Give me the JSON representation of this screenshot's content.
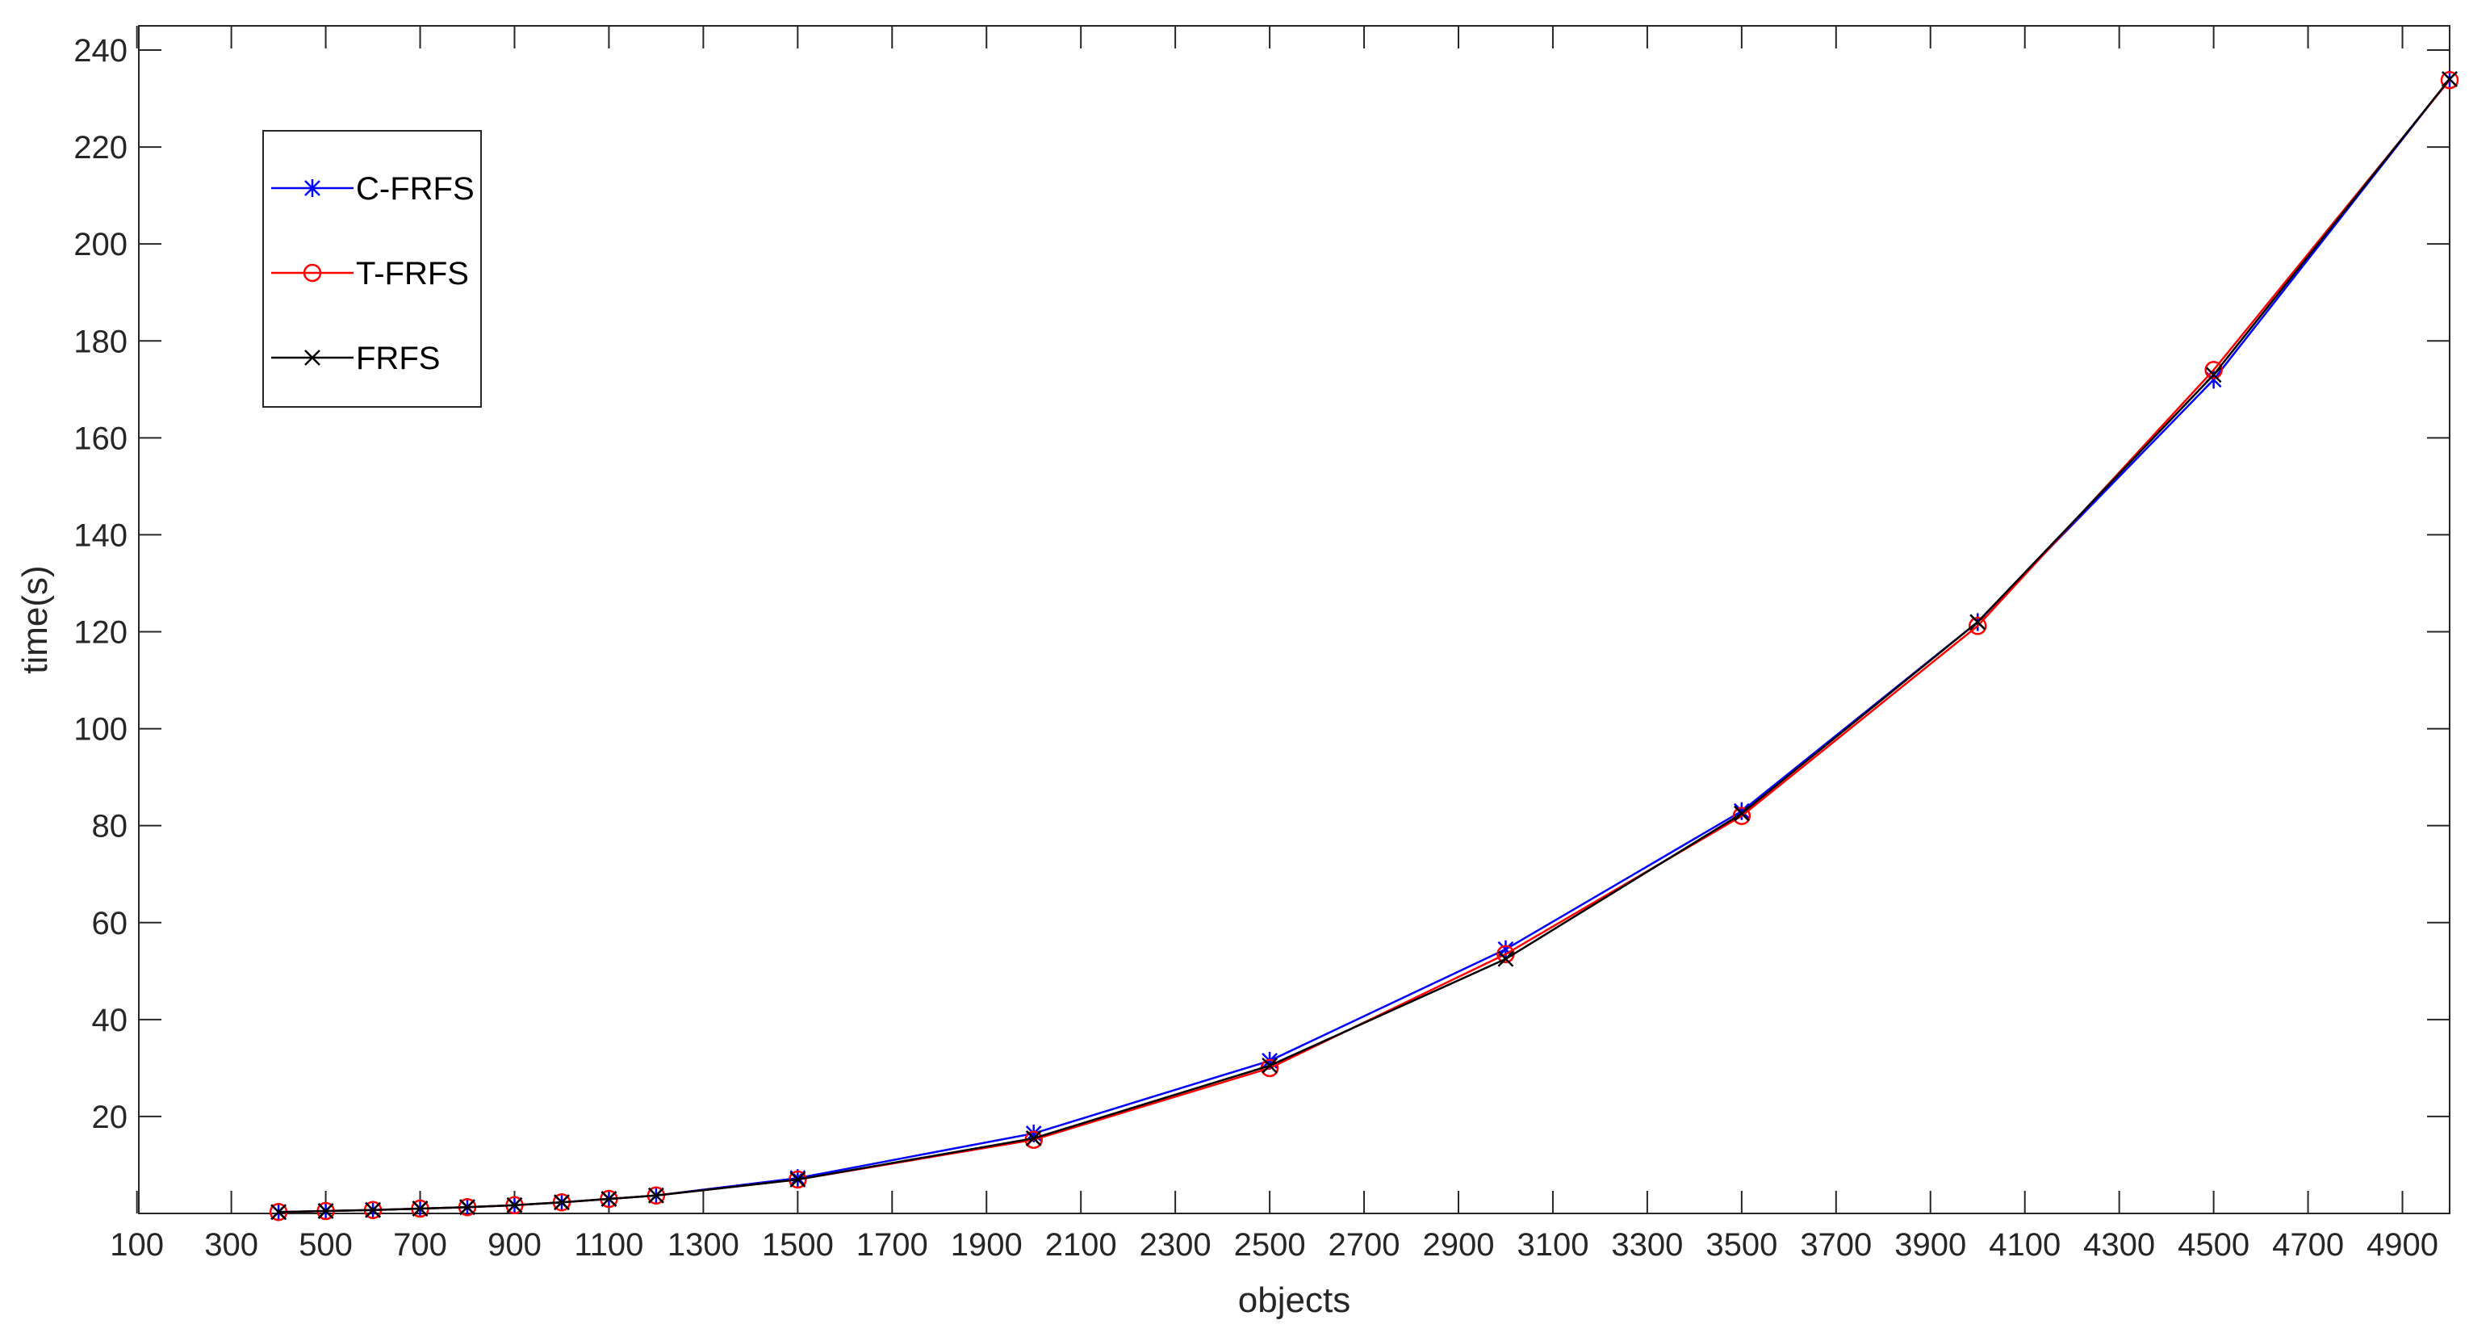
{
  "chart_data": {
    "type": "line",
    "title": "",
    "xlabel": "objects",
    "ylabel": "time(s)",
    "xlim": [
      0,
      5000
    ],
    "ylim": [
      0,
      245
    ],
    "x_ticks": [
      100,
      300,
      500,
      700,
      900,
      1100,
      1300,
      1500,
      1700,
      1900,
      2100,
      2300,
      2500,
      2700,
      2900,
      3100,
      3300,
      3500,
      3700,
      3900,
      4100,
      4300,
      4500,
      4700,
      4900
    ],
    "y_ticks": [
      20,
      40,
      60,
      80,
      100,
      120,
      140,
      160,
      180,
      200,
      220,
      240
    ],
    "grid": false,
    "legend_position": "top-left",
    "x": [
      400,
      500,
      600,
      700,
      800,
      900,
      1000,
      1100,
      1200,
      1500,
      2000,
      2500,
      3000,
      3500,
      4000,
      4500,
      5000
    ],
    "series": [
      {
        "name": "C-FRFS",
        "color": "#0000ff",
        "marker": "asterisk",
        "values": [
          0.3,
          0.5,
          0.7,
          1.0,
          1.3,
          1.7,
          2.3,
          3.0,
          3.7,
          7.3,
          16.5,
          31.5,
          54.5,
          83.0,
          122.0,
          172.0,
          234.0
        ]
      },
      {
        "name": "T-FRFS",
        "color": "#ff0000",
        "marker": "circle",
        "values": [
          0.3,
          0.5,
          0.7,
          1.0,
          1.3,
          1.7,
          2.3,
          3.0,
          3.7,
          7.0,
          15.2,
          30.0,
          53.5,
          82.0,
          121.2,
          174.0,
          233.8
        ]
      },
      {
        "name": "FRFS",
        "color": "#000000",
        "marker": "cross",
        "values": [
          0.3,
          0.5,
          0.7,
          1.0,
          1.3,
          1.7,
          2.3,
          3.0,
          3.7,
          7.0,
          15.5,
          30.5,
          52.5,
          82.5,
          122.0,
          173.0,
          234.0
        ]
      }
    ]
  }
}
